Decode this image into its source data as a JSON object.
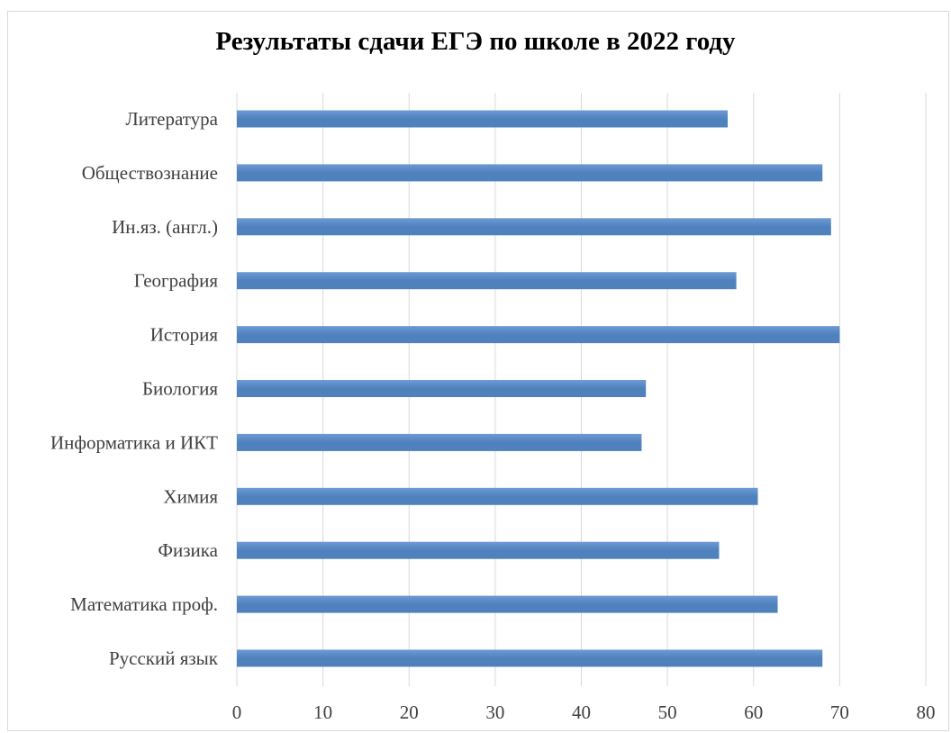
{
  "chart_data": {
    "type": "bar",
    "orientation": "horizontal",
    "title": "Результаты сдачи ЕГЭ по школе в 2022 году",
    "categories": [
      "Литература",
      "Обществознание",
      "Ин.яз. (англ.)",
      "География",
      "История",
      "Биология",
      "Информатика и ИКТ",
      "Химия",
      "Физика",
      "Математика проф.",
      "Русский язык"
    ],
    "values": [
      57,
      68,
      69,
      58,
      70,
      47.5,
      47,
      60.5,
      56,
      62.8,
      68
    ],
    "xlim": [
      0,
      80
    ],
    "xticks": [
      "0",
      "10",
      "20",
      "30",
      "40",
      "50",
      "60",
      "70",
      "80"
    ],
    "xlabel": "",
    "ylabel": "",
    "grid": "vertical",
    "legend": "none",
    "bar_color": "#4f81bd",
    "bar_color_light": "#6d9ad4"
  }
}
